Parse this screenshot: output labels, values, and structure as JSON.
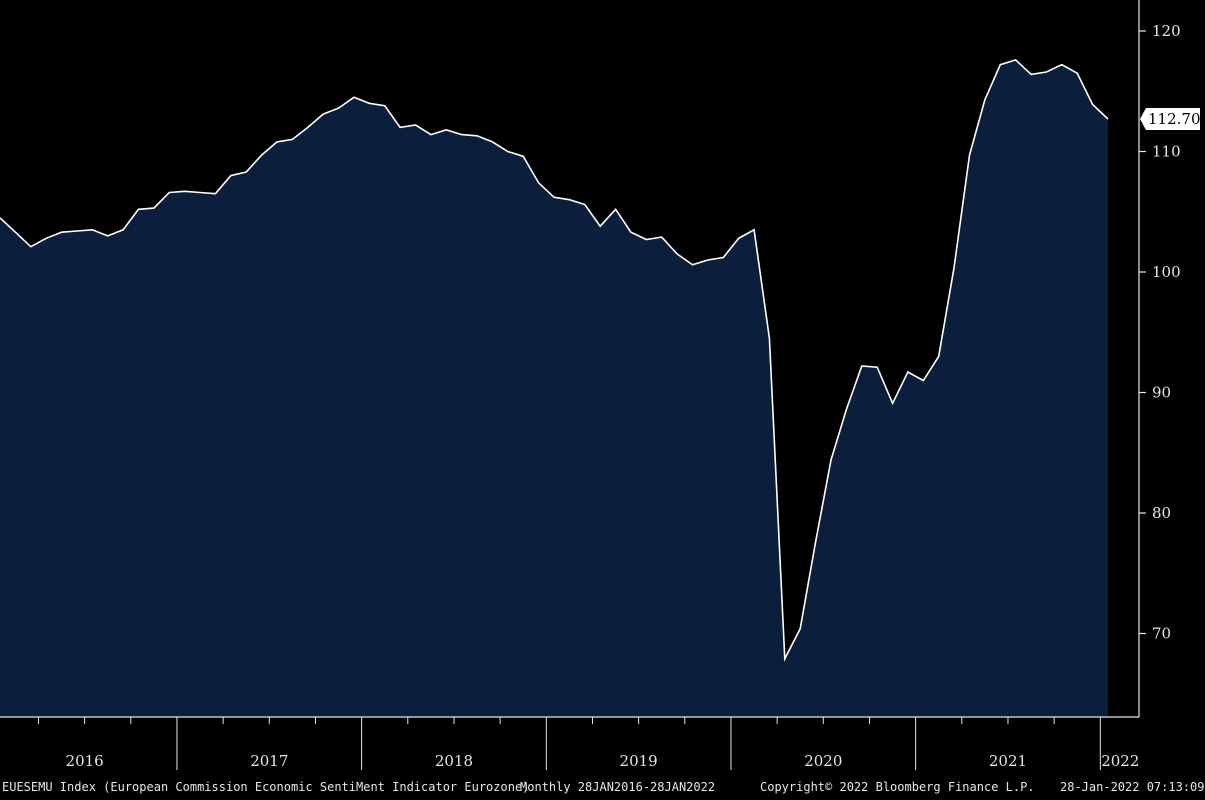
{
  "colors": {
    "background": "#000000",
    "fill": "#0b1f3c",
    "line": "#ffffff",
    "axis": "#e6e6e6"
  },
  "footer": {
    "ticker": "EUESEMU Index (European Commission Economic SentiMent Indicator Eurozone)",
    "range": "Monthly 28JAN2016-28JAN2022",
    "copyright": "Copyright© 2022 Bloomberg Finance L.P.",
    "timestamp": "28-Jan-2022 07:13:09"
  },
  "chart_data": {
    "type": "area",
    "title": "",
    "xlabel": "",
    "ylabel": "",
    "ylim": [
      63.5,
      122
    ],
    "yticks": [
      70,
      80,
      90,
      100,
      110,
      120
    ],
    "ytick_labels": [
      "70",
      "80",
      "90",
      "100",
      "110",
      "120"
    ],
    "year_labels": [
      "2016",
      "2017",
      "2018",
      "2019",
      "2020",
      "2021",
      "2022"
    ],
    "last_value_label": "112.70",
    "series": [
      {
        "dates": [
          "2016-01",
          "2016-02",
          "2016-03",
          "2016-04",
          "2016-05",
          "2016-06",
          "2016-07",
          "2016-08",
          "2016-09",
          "2016-10",
          "2016-11",
          "2016-12",
          "2017-01",
          "2017-02",
          "2017-03",
          "2017-04",
          "2017-05",
          "2017-06",
          "2017-07",
          "2017-08",
          "2017-09",
          "2017-10",
          "2017-11",
          "2017-12",
          "2018-01",
          "2018-02",
          "2018-03",
          "2018-04",
          "2018-05",
          "2018-06",
          "2018-07",
          "2018-08",
          "2018-09",
          "2018-10",
          "2018-11",
          "2018-12",
          "2019-01",
          "2019-02",
          "2019-03",
          "2019-04",
          "2019-05",
          "2019-06",
          "2019-07",
          "2019-08",
          "2019-09",
          "2019-10",
          "2019-11",
          "2019-12",
          "2020-01",
          "2020-02",
          "2020-03",
          "2020-04",
          "2020-05",
          "2020-06",
          "2020-07",
          "2020-08",
          "2020-09",
          "2020-10",
          "2020-11",
          "2020-12",
          "2021-01",
          "2021-02",
          "2021-03",
          "2021-04",
          "2021-05",
          "2021-06",
          "2021-07",
          "2021-08",
          "2021-09",
          "2021-10",
          "2021-11",
          "2021-12",
          "2022-01"
        ],
        "values": [
          104.5,
          103.3,
          102.1,
          102.8,
          103.3,
          103.4,
          103.5,
          103.0,
          103.5,
          105.2,
          105.3,
          106.6,
          106.7,
          106.6,
          106.5,
          108.0,
          108.3,
          109.7,
          110.8,
          111.0,
          112.0,
          113.1,
          113.6,
          114.5,
          114.0,
          113.8,
          112.0,
          112.2,
          111.4,
          111.8,
          111.4,
          111.3,
          110.8,
          110.0,
          109.6,
          107.4,
          106.2,
          106.0,
          105.6,
          103.8,
          105.2,
          103.3,
          102.7,
          102.9,
          101.5,
          100.6,
          101.0,
          101.2,
          102.8,
          103.5,
          94.5,
          67.9,
          70.4,
          77.6,
          84.4,
          88.6,
          92.2,
          92.1,
          89.1,
          91.7,
          91.0,
          93.0,
          100.4,
          109.7,
          114.3,
          117.2,
          117.6,
          116.4,
          116.6,
          117.2,
          116.5,
          113.9,
          112.7
        ]
      }
    ]
  }
}
